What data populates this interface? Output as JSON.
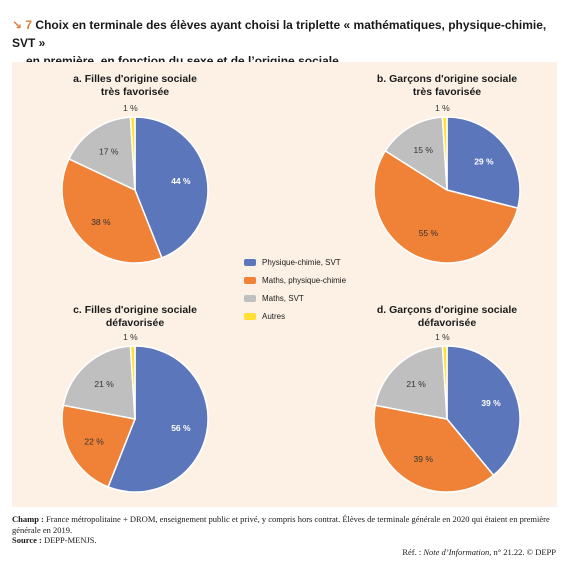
{
  "figure": {
    "number": "↘ 7",
    "title_line1": "Choix en terminale des élèves ayant choisi la triplette « mathématiques, physique-chimie, SVT »",
    "title_line2": "en première, en fonction du sexe et de l’origine sociale"
  },
  "legend": [
    {
      "label": "Physique-chimie, SVT",
      "color": "#5b76bb"
    },
    {
      "label": "Maths, physique-chimie",
      "color": "#ef8237"
    },
    {
      "label": "Maths, SVT",
      "color": "#bfbfbf"
    },
    {
      "label": "Autres",
      "color": "#ffe033"
    }
  ],
  "chart_data": [
    {
      "type": "pie",
      "title_line1": "a. Filles d'origine sociale",
      "title_line2": "très favorisée",
      "slices": [
        {
          "label": "Physique-chimie, SVT",
          "value": 44,
          "text": "44 %",
          "color": "#5b76bb"
        },
        {
          "label": "Maths, physique-chimie",
          "value": 38,
          "text": "38 %",
          "color": "#ef8237"
        },
        {
          "label": "Maths, SVT",
          "value": 17,
          "text": "17 %",
          "color": "#bfbfbf"
        },
        {
          "label": "Autres",
          "value": 1,
          "text": "1 %",
          "color": "#ffe033"
        }
      ]
    },
    {
      "type": "pie",
      "title_line1": "b. Garçons d'origine sociale",
      "title_line2": "très favorisée",
      "slices": [
        {
          "label": "Physique-chimie, SVT",
          "value": 29,
          "text": "29 %",
          "color": "#5b76bb"
        },
        {
          "label": "Maths, physique-chimie",
          "value": 55,
          "text": "55 %",
          "color": "#ef8237"
        },
        {
          "label": "Maths, SVT",
          "value": 15,
          "text": "15 %",
          "color": "#bfbfbf"
        },
        {
          "label": "Autres",
          "value": 1,
          "text": "1 %",
          "color": "#ffe033"
        }
      ]
    },
    {
      "type": "pie",
      "title_line1": "c. Filles d'origine sociale",
      "title_line2": "défavorisée",
      "slices": [
        {
          "label": "Physique-chimie, SVT",
          "value": 56,
          "text": "56 %",
          "color": "#5b76bb"
        },
        {
          "label": "Maths, physique-chimie",
          "value": 22,
          "text": "22 %",
          "color": "#ef8237"
        },
        {
          "label": "Maths, SVT",
          "value": 21,
          "text": "21 %",
          "color": "#bfbfbf"
        },
        {
          "label": "Autres",
          "value": 1,
          "text": "1 %",
          "color": "#ffe033"
        }
      ]
    },
    {
      "type": "pie",
      "title_line1": "d. Garçons d'origine sociale",
      "title_line2": "défavorisée",
      "slices": [
        {
          "label": "Physique-chimie, SVT",
          "value": 39,
          "text": "39 %",
          "color": "#5b76bb"
        },
        {
          "label": "Maths, physique-chimie",
          "value": 39,
          "text": "39 %",
          "color": "#ef8237"
        },
        {
          "label": "Maths, SVT",
          "value": 21,
          "text": "21 %",
          "color": "#bfbfbf"
        },
        {
          "label": "Autres",
          "value": 1,
          "text": "1 %",
          "color": "#ffe033"
        }
      ]
    }
  ],
  "footer": {
    "champ_label": "Champ :",
    "champ_text": "France métropolitaine + DROM, enseignement public et privé, y compris hors contrat. Élèves de terminale générale en 2020 qui étaient en première générale en 2019.",
    "source_label": "Source :",
    "source_text": "DEPP-MENJS.",
    "ref_label": "Réf. :",
    "ref_title": "Note d’Information",
    "ref_rest": ", n° 21.22. © DEPP"
  }
}
